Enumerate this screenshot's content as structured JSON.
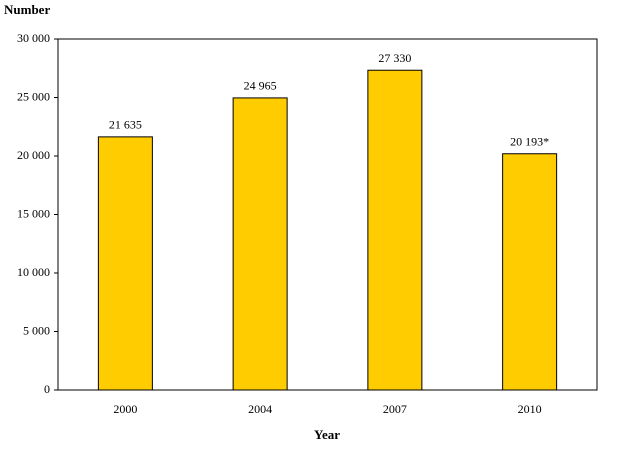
{
  "chart_data": {
    "type": "bar",
    "y_label": "Number",
    "x_label": "Year",
    "categories": [
      "2000",
      "2004",
      "2007",
      "2010"
    ],
    "values": [
      21635,
      24965,
      27330,
      20193
    ],
    "value_labels": [
      "21 635",
      "24 965",
      "27 330",
      "20 193*"
    ],
    "color": "#ffcc00",
    "ylim": [
      0,
      30000
    ],
    "yticks": [
      0,
      {
        "value": 5000,
        "label": "5 000"
      },
      {
        "value": 10000,
        "label": "10 000"
      },
      {
        "value": 15000,
        "label": "15 000"
      },
      {
        "value": 20000,
        "label": "20 000"
      },
      {
        "value": 25000,
        "label": "25 000"
      },
      {
        "value": 30000,
        "label": "30 000"
      }
    ],
    "grid": false
  }
}
